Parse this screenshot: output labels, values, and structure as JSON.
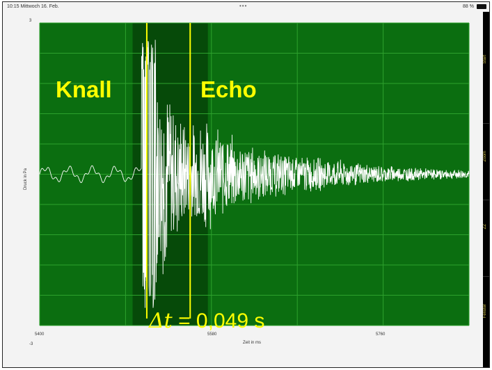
{
  "status_bar": {
    "time_date": "10:15  Mittwoch 16. Feb.",
    "dots": "•••",
    "battery": "88 %"
  },
  "sidebar": {
    "buttons": [
      "Start",
      "Zoom",
      "ZZ",
      "Fenster"
    ]
  },
  "annotations": {
    "knall": "Knall",
    "echo": "Echo",
    "delta_symbol": "Δt",
    "delta_value": "= 0,049 s"
  },
  "colors": {
    "plot_bg": "#0b6e10",
    "shaded_bg": "#064a09",
    "grid": "#2da12d",
    "signal": "#ffffff",
    "marker": "#ffff00"
  },
  "chart_data": {
    "type": "line",
    "title": "",
    "xlabel": "Zeit in ms",
    "ylabel": "Druck in Pa",
    "xlim": [
      5400,
      5885
    ],
    "ylim": [
      -3,
      3
    ],
    "x_tick_labels": [
      "5400",
      "5580",
      "5760"
    ],
    "y_tick_labels": [
      "3",
      "-3"
    ],
    "grid": true,
    "shaded_region": [
      5505,
      5590
    ],
    "markers_x": [
      5521,
      5570
    ],
    "series": [
      {
        "x": [
          5400,
          5420,
          5440,
          5460,
          5480,
          5500,
          5515,
          5521,
          5530,
          5540,
          5550,
          5560,
          5570,
          5580,
          5600,
          5620,
          5640,
          5660,
          5680,
          5700,
          5720,
          5740,
          5760,
          5780,
          5800,
          5820,
          5840,
          5860,
          5885
        ],
        "y": [
          0,
          0.1,
          -0.05,
          0.08,
          -0.05,
          0.05,
          0,
          2.7,
          2.7,
          2.2,
          1.6,
          1.3,
          1.0,
          1.3,
          1.0,
          0.8,
          0.65,
          0.5,
          0.45,
          0.4,
          0.35,
          0.3,
          0.25,
          0.2,
          0.18,
          0.15,
          0.12,
          0.1,
          0.1
        ]
      }
    ]
  }
}
